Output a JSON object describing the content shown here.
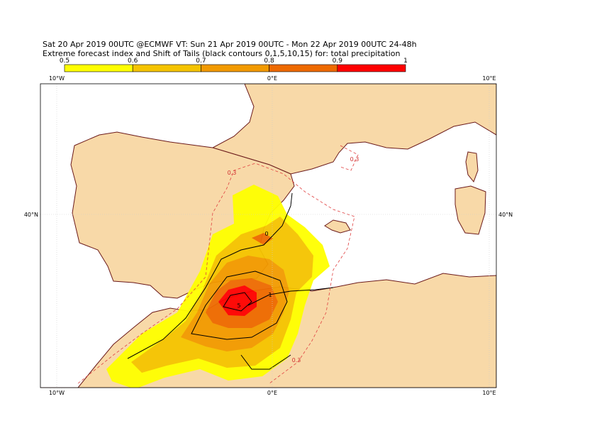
{
  "header": {
    "line1": "Sat 20 Apr 2019 00UTC @ECMWF VT: Sun 21 Apr 2019 00UTC - Mon 22 Apr 2019 00UTC  24-48h",
    "line2": "Extreme forecast index and Shift of Tails (black contours 0,1,5,10,15) for: total precipitation"
  },
  "colorbar": {
    "labels": [
      "0.5",
      "0.6",
      "0.7",
      "0.8",
      "0.9",
      "1"
    ],
    "colors": [
      "#ffff00",
      "#f5c400",
      "#f29a00",
      "#ee6a00",
      "#ff0000"
    ]
  },
  "map": {
    "lon_labels": [
      "10°W",
      "0°E",
      "10°E"
    ],
    "lat_labels": [
      "40°N"
    ],
    "contour_labels": [
      "0.3",
      "0.3",
      "0.3",
      "0",
      "1",
      "5"
    ]
  }
}
